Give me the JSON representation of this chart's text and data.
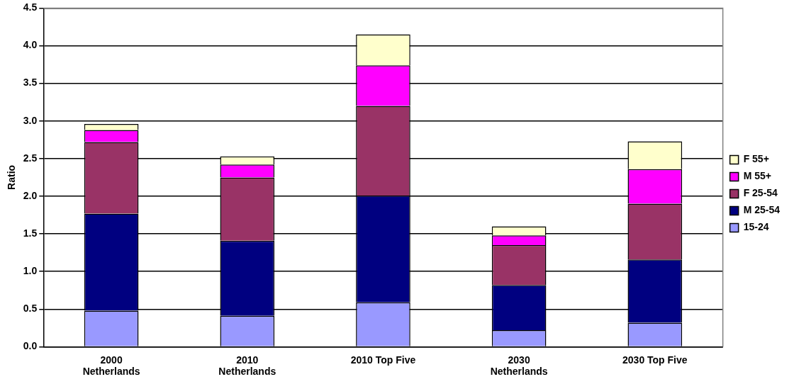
{
  "chart_data": {
    "type": "bar",
    "stacked": true,
    "ylabel": "Ratio",
    "categories": [
      "2000\nNetherlands",
      "2010\nNetherlands",
      "2010 Top Five",
      "2030\nNetherlands",
      "2030 Top Five"
    ],
    "series": [
      {
        "name": "15-24",
        "color": "#9999ff",
        "values": [
          0.48,
          0.41,
          0.59,
          0.22,
          0.32
        ]
      },
      {
        "name": "M 25-54",
        "color": "#000080",
        "values": [
          1.29,
          1.0,
          1.42,
          0.6,
          0.84
        ]
      },
      {
        "name": "F 25-54",
        "color": "#993366",
        "values": [
          0.95,
          0.84,
          1.19,
          0.53,
          0.74
        ]
      },
      {
        "name": "M 55+",
        "color": "#ff00ff",
        "values": [
          0.16,
          0.17,
          0.54,
          0.13,
          0.46
        ]
      },
      {
        "name": "F 55+",
        "color": "#ffffcc",
        "values": [
          0.08,
          0.11,
          0.41,
          0.12,
          0.37
        ]
      }
    ],
    "ylim": [
      0,
      4.5
    ],
    "yticks": [
      {
        "value": 0,
        "label": "0.0"
      },
      0.5,
      {
        "value": 1,
        "label": "1.0"
      },
      1.5,
      {
        "value": 2,
        "label": "2.0"
      },
      2.5,
      {
        "value": 3,
        "label": "3.0"
      },
      3.5,
      {
        "value": 4,
        "label": "4.0"
      },
      4.5
    ],
    "grid": "y",
    "legend": "right"
  }
}
